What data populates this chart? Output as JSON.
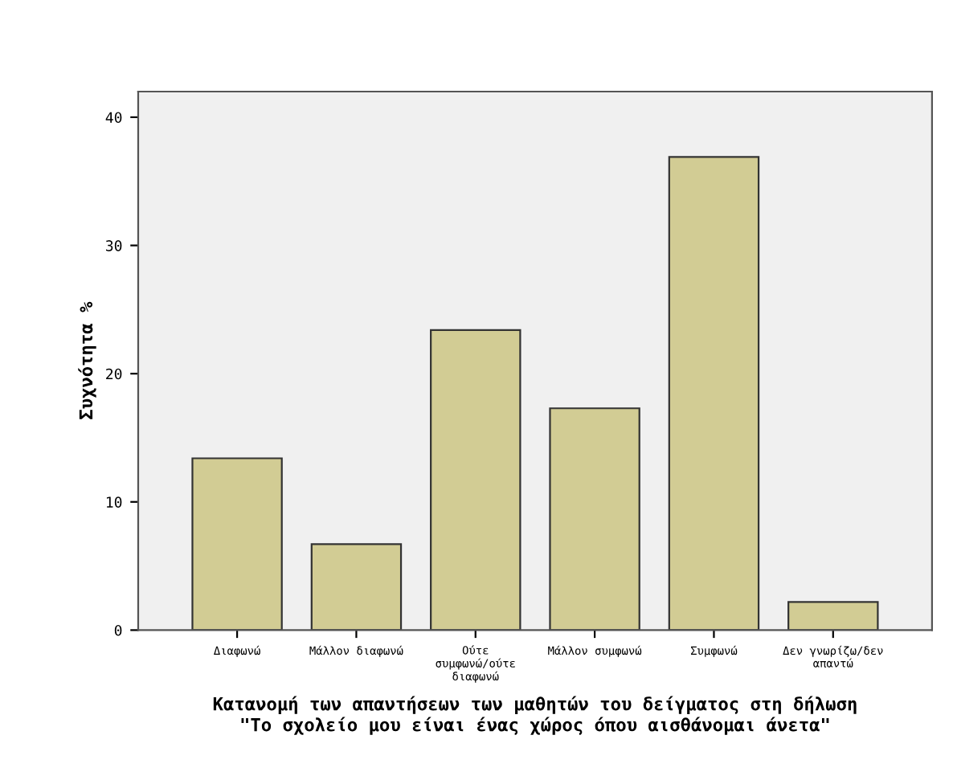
{
  "chart_data": {
    "type": "bar",
    "categories": [
      "Διαφωνώ",
      "Μάλλον διαφωνώ",
      "Ούτε\nσυμφωνώ/ούτε\nδιαφωνώ",
      "Μάλλον συμφωνώ",
      "Συμφωνώ",
      "Δεν γνωρίζω/δεν\nαπαντώ"
    ],
    "values": [
      13.4,
      6.7,
      23.4,
      17.3,
      36.9,
      2.2
    ],
    "color": "#d2cc94",
    "xlabel": "Κατανομή των απαντήσεων των μαθητών του δείγματος στη δήλωση\n\"Το σχολείο μου είναι ένας χώρος όπου αισθάνομαι άνετα\"",
    "ylabel": "Συχνότητα %",
    "ylim": [
      0,
      42
    ],
    "yticks": [
      0,
      10,
      20,
      30,
      40
    ],
    "grid": false,
    "legend": false
  }
}
